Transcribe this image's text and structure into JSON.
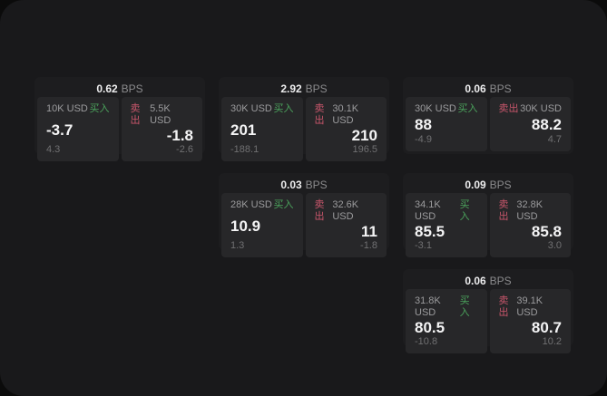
{
  "labels": {
    "bps": "BPS",
    "buy": "买入",
    "sell": "卖出"
  },
  "colors": {
    "buy_green": "#4ba35c",
    "sell_red": "#c8566b",
    "screen_bg": "#19191b",
    "card_bg": "#1d1d1f",
    "tile_bg": "#272729"
  },
  "cards": [
    {
      "row": 1,
      "col": 1,
      "bps": "0.62",
      "buy": {
        "amount": "10K USD",
        "price": "-3.7",
        "delta": "4.3"
      },
      "sell": {
        "amount": "5.5K USD",
        "price": "-1.8",
        "delta": "-2.6"
      }
    },
    {
      "row": 1,
      "col": 2,
      "bps": "2.92",
      "buy": {
        "amount": "30K USD",
        "price": "201",
        "delta": "-188.1"
      },
      "sell": {
        "amount": "30.1K USD",
        "price": "210",
        "delta": "196.5"
      }
    },
    {
      "row": 1,
      "col": 3,
      "bps": "0.06",
      "buy": {
        "amount": "30K USD",
        "price": "88",
        "delta": "-4.9"
      },
      "sell": {
        "amount": "30K USD",
        "price": "88.2",
        "delta": "4.7"
      }
    },
    {
      "row": 2,
      "col": 2,
      "bps": "0.03",
      "buy": {
        "amount": "28K USD",
        "price": "10.9",
        "delta": "1.3"
      },
      "sell": {
        "amount": "32.6K USD",
        "price": "11",
        "delta": "-1.8"
      }
    },
    {
      "row": 2,
      "col": 3,
      "bps": "0.09",
      "buy": {
        "amount": "34.1K USD",
        "price": "85.5",
        "delta": "-3.1"
      },
      "sell": {
        "amount": "32.8K USD",
        "price": "85.8",
        "delta": "3.0"
      }
    },
    {
      "row": 3,
      "col": 3,
      "bps": "0.06",
      "buy": {
        "amount": "31.8K USD",
        "price": "80.5",
        "delta": "-10.8"
      },
      "sell": {
        "amount": "39.1K USD",
        "price": "80.7",
        "delta": "10.2"
      }
    }
  ]
}
